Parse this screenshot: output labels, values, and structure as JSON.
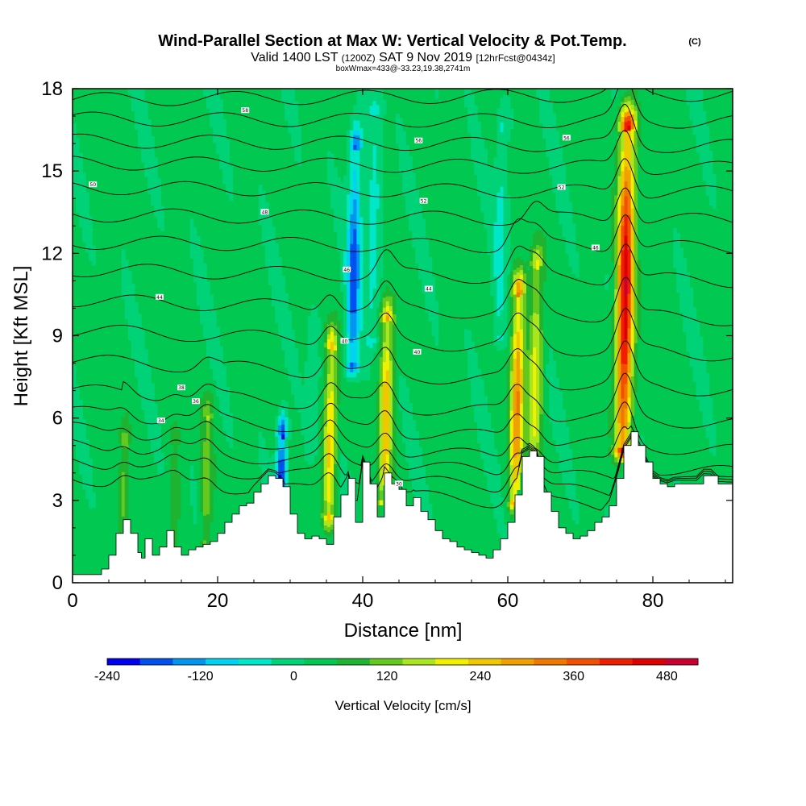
{
  "chart_data": {
    "type": "heatmap",
    "title": "Wind-Parallel Section at Max W: Vertical Velocity & Pot.Temp.",
    "title_mark": "(C)",
    "subtitle_main_a": "Valid 1400 LST",
    "subtitle_small_a": "(1200Z)",
    "subtitle_main_b": "SAT 9 Nov 2019",
    "subtitle_small_b": "[12hrFcst@0434z]",
    "subtitle2": "boxWmax=433@-33.23,19.38,2741m",
    "xlabel": "Distance [nm]",
    "ylabel": "Height [Kft MSL]",
    "xlim": [
      0,
      91
    ],
    "ylim": [
      0,
      18
    ],
    "xticks": [
      0,
      20,
      40,
      60,
      80
    ],
    "yticks": [
      0,
      3,
      6,
      9,
      12,
      15,
      18
    ],
    "colorbar": {
      "label": "Vertical Velocity [cm/s]",
      "min": -240,
      "max": 520,
      "step": 40,
      "ticks": [
        -240,
        -120,
        0,
        120,
        240,
        360,
        480
      ],
      "colors": [
        "#0000f0",
        "#0050f0",
        "#0096f0",
        "#00d2f0",
        "#00e6c8",
        "#00d278",
        "#00c850",
        "#1eb432",
        "#64c81e",
        "#aae61e",
        "#f0f000",
        "#f0c800",
        "#f0a000",
        "#f07800",
        "#f05000",
        "#f01e00",
        "#dc0000",
        "#c80032"
      ]
    },
    "background_value_cms": 10,
    "updrafts": [
      {
        "x": 7,
        "y_bottom": 1.5,
        "y_top": 5.0,
        "w_cms": 100
      },
      {
        "x": 14,
        "y_bottom": 1.2,
        "y_top": 5.0,
        "w_cms": 80
      },
      {
        "x": 18.5,
        "y_bottom": 1.5,
        "y_top": 6.0,
        "w_cms": 110
      },
      {
        "x": 35.5,
        "y_bottom": 2.5,
        "y_top": 8.5,
        "w_cms": 220
      },
      {
        "x": 43.2,
        "y_bottom": 3.0,
        "y_top": 9.5,
        "w_cms": 250
      },
      {
        "x": 61.3,
        "y_bottom": 3.0,
        "y_top": 10.5,
        "w_cms": 290
      },
      {
        "x": 63.8,
        "y_bottom": 4.0,
        "y_top": 11.5,
        "w_cms": 180
      },
      {
        "x": 76.2,
        "y_bottom": 5.0,
        "y_top": 16.5,
        "w_cms": 433
      }
    ],
    "downdrafts": [
      {
        "x": 28.8,
        "y_bottom": 2.8,
        "y_top": 5.3,
        "w_cms": -230
      },
      {
        "x": 38.8,
        "y_bottom": 8.0,
        "y_top": 15.8,
        "w_cms": -180
      },
      {
        "x": 41.5,
        "y_bottom": 9.0,
        "y_top": 17.0,
        "w_cms": -60
      },
      {
        "x": 59.0,
        "y_bottom": 9.0,
        "y_top": 16.5,
        "w_cms": -60
      },
      {
        "x": 33.0,
        "y_bottom": 5.0,
        "y_top": 9.0,
        "w_cms": -40
      }
    ],
    "terrain": {
      "x": [
        0,
        4,
        5,
        6,
        7,
        8,
        9,
        9.5,
        10,
        11,
        12,
        13,
        14,
        15,
        16,
        17,
        18,
        19,
        20,
        21,
        22,
        23,
        24,
        25,
        26,
        27,
        28,
        29,
        30,
        31,
        32,
        33,
        34,
        35,
        36,
        37,
        38,
        39,
        40,
        41,
        42,
        43,
        44,
        45,
        46,
        47,
        48,
        49,
        50,
        51,
        52,
        53,
        54,
        55,
        56,
        57,
        58,
        59,
        60,
        61,
        62,
        63,
        64,
        65,
        66,
        67,
        68,
        69,
        70,
        71,
        72,
        73,
        74,
        75,
        76,
        77,
        78,
        79,
        80,
        81,
        82,
        83,
        84,
        85,
        86,
        87,
        88,
        89,
        90,
        91
      ],
      "height_kft": [
        0.3,
        0.5,
        1.0,
        1.8,
        2.3,
        1.8,
        1.1,
        0.9,
        1.6,
        1.0,
        1.3,
        1.9,
        1.3,
        1.0,
        1.2,
        1.3,
        1.4,
        1.5,
        1.8,
        2.2,
        2.5,
        2.8,
        2.9,
        3.3,
        3.6,
        3.9,
        3.8,
        3.5,
        2.5,
        1.8,
        1.6,
        1.7,
        1.6,
        1.4,
        2.4,
        3.2,
        3.8,
        2.2,
        4.4,
        3.6,
        2.4,
        4.0,
        3.6,
        3.4,
        2.8,
        3.1,
        2.6,
        2.3,
        1.9,
        1.6,
        1.5,
        1.3,
        1.2,
        1.1,
        1.0,
        0.9,
        1.2,
        1.6,
        2.2,
        3.2,
        4.6,
        4.8,
        4.6,
        3.3,
        2.6,
        2.0,
        1.8,
        1.6,
        1.7,
        1.9,
        2.2,
        2.4,
        2.8,
        3.8,
        5.0,
        5.5,
        5.0,
        4.4,
        3.8,
        3.6,
        3.5,
        3.6,
        3.6,
        3.6,
        3.6,
        3.9,
        3.9,
        3.6,
        3.6,
        3.6
      ]
    },
    "isentropes": [
      {
        "label": "58",
        "y_left": 17.6,
        "y_right": 17.8
      },
      {
        "label": "56",
        "y_left": 16.9,
        "y_right": 16.8
      },
      {
        "label": "54",
        "y_left": 16.1,
        "y_right": 15.9
      },
      {
        "label": "52",
        "y_left": 15.3,
        "y_right": 15.1
      },
      {
        "label": "50",
        "y_left": 14.4,
        "y_right": 14.2
      },
      {
        "label": "48",
        "y_left": 13.4,
        "y_right": 13.2
      },
      {
        "label": "46",
        "y_left": 12.4,
        "y_right": 12.2
      },
      {
        "label": "44",
        "y_left": 11.4,
        "y_right": 11.0
      },
      {
        "label": "42",
        "y_left": 10.3,
        "y_right": 9.6
      },
      {
        "label": "40",
        "y_left": 9.2,
        "y_right": 8.3
      },
      {
        "label": "38",
        "y_left": 8.1,
        "y_right": 7.0
      },
      {
        "label": "36",
        "y_left": 7.0,
        "y_right": 5.8
      },
      {
        "label": "34",
        "y_left": 6.2,
        "y_right": 4.8
      },
      {
        "label": "32",
        "y_left": 5.6,
        "y_right": 4.0
      },
      {
        "label": "30",
        "y_left": 5.0,
        "y_right": 3.5
      },
      {
        "label": "28",
        "y_left": 4.4,
        "y_right": 3.0
      },
      {
        "label": "26",
        "y_left": 3.8,
        "y_right": 2.5
      }
    ],
    "isentrope_label_points": [
      {
        "x": 2.8,
        "y": 14.5,
        "label": "50"
      },
      {
        "x": 23.8,
        "y": 17.2,
        "label": "58"
      },
      {
        "x": 26.5,
        "y": 13.5,
        "label": "48"
      },
      {
        "x": 12.0,
        "y": 10.4,
        "label": "44"
      },
      {
        "x": 15.0,
        "y": 7.1,
        "label": "38"
      },
      {
        "x": 17.0,
        "y": 6.6,
        "label": "36"
      },
      {
        "x": 12.2,
        "y": 5.9,
        "label": "34"
      },
      {
        "x": 37.5,
        "y": 8.8,
        "label": "40"
      },
      {
        "x": 37.8,
        "y": 11.4,
        "label": "46"
      },
      {
        "x": 47.7,
        "y": 16.1,
        "label": "56"
      },
      {
        "x": 48.4,
        "y": 13.9,
        "label": "52"
      },
      {
        "x": 49.1,
        "y": 10.7,
        "label": "44"
      },
      {
        "x": 47.5,
        "y": 8.4,
        "label": "40"
      },
      {
        "x": 45.0,
        "y": 3.6,
        "label": "30"
      },
      {
        "x": 68.1,
        "y": 16.2,
        "label": "56"
      },
      {
        "x": 67.4,
        "y": 14.4,
        "label": "52"
      },
      {
        "x": 72.1,
        "y": 12.2,
        "label": "46"
      }
    ]
  }
}
